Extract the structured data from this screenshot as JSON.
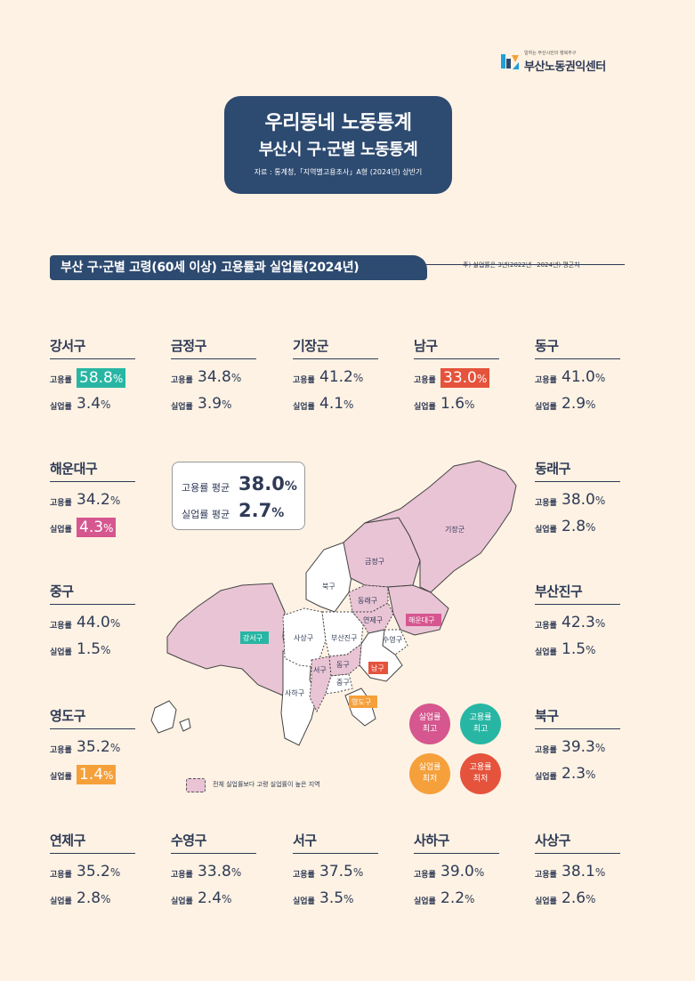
{
  "logo": {
    "tagline": "일하는 부산시민의 행복추구",
    "name": "부산노동권익센터",
    "colors": [
      "#1f9fd7",
      "#f5a03b",
      "#2d4a70"
    ]
  },
  "title": {
    "line1": "우리동네 노동통계",
    "line2": "부산시 구·군별 노동통계",
    "source": "자료 : 통계청,「지역별고용조사」A형 (2024년) 상반기"
  },
  "section": {
    "title": "부산 구·군별 고령(60세 이상) 고용률과 실업률(2024년)",
    "note": "주) 실업률은 3년(2022년~2024년) 평균치"
  },
  "labels": {
    "employment": "고용률",
    "unemployment": "실업률",
    "percent": "%"
  },
  "average": {
    "employment_label": "고용률 평균",
    "employment_value": "38.0",
    "unemployment_label": "실업률 평균",
    "unemployment_value": "2.7"
  },
  "districts": [
    {
      "name": "강서구",
      "employment": "58.8",
      "unemployment": "3.4",
      "emp_highlight": "teal"
    },
    {
      "name": "금정구",
      "employment": "34.8",
      "unemployment": "3.9"
    },
    {
      "name": "기장군",
      "employment": "41.2",
      "unemployment": "4.1"
    },
    {
      "name": "남구",
      "employment": "33.0",
      "unemployment": "1.6",
      "emp_highlight": "red"
    },
    {
      "name": "동구",
      "employment": "41.0",
      "unemployment": "2.9"
    },
    {
      "name": "해운대구",
      "employment": "34.2",
      "unemployment": "4.3",
      "unemp_highlight": "pink"
    },
    {
      "name": "동래구",
      "employment": "38.0",
      "unemployment": "2.8"
    },
    {
      "name": "중구",
      "employment": "44.0",
      "unemployment": "1.5"
    },
    {
      "name": "부산진구",
      "employment": "42.3",
      "unemployment": "1.5"
    },
    {
      "name": "영도구",
      "employment": "35.2",
      "unemployment": "1.4",
      "unemp_highlight": "orange"
    },
    {
      "name": "북구",
      "employment": "39.3",
      "unemployment": "2.3"
    },
    {
      "name": "연제구",
      "employment": "35.2",
      "unemployment": "2.8"
    },
    {
      "name": "수영구",
      "employment": "33.8",
      "unemployment": "2.4"
    },
    {
      "name": "서구",
      "employment": "37.5",
      "unemployment": "3.5"
    },
    {
      "name": "사하구",
      "employment": "39.0",
      "unemployment": "2.2"
    },
    {
      "name": "사상구",
      "employment": "38.1",
      "unemployment": "2.6"
    }
  ],
  "map_labels": {
    "gijang": "기장군",
    "geumjeong": "금정구",
    "buk": "북구",
    "dongnae": "동래구",
    "haeundae": "해운대구",
    "gangseo": "강서구",
    "sasang": "사상구",
    "busanjin": "부산진구",
    "yeonje": "연제구",
    "suyeong": "수영구",
    "seo": "서구",
    "dong": "동구",
    "nam": "남구",
    "jung": "중구",
    "saha": "사하구",
    "yeongdo": "영도구"
  },
  "legend": {
    "unemp_high": [
      "실업률",
      "최고"
    ],
    "emp_high": [
      "고용률",
      "최고"
    ],
    "unemp_low": [
      "실업률",
      "최저"
    ],
    "emp_low": [
      "고용률",
      "최저"
    ],
    "pink_area": "전체 실업률보다 고령 실업률이 높은 지역"
  },
  "colors": {
    "background": "#fdf2e3",
    "navy": "#2d4a70",
    "teal": "#28b6a4",
    "red": "#e5533c",
    "pink": "#d6568f",
    "orange": "#f5a03b",
    "map_pink": "#e9c4d5"
  }
}
